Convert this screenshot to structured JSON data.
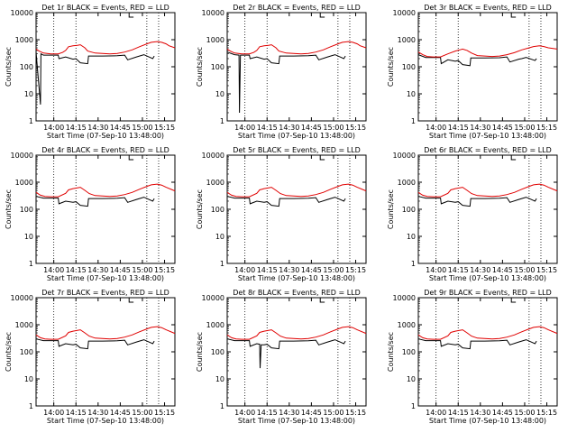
{
  "chart_data": [
    {
      "type": "line",
      "title": "Det 1r BLACK = Events, RED = LLD",
      "xlabel": "Start Time (07-Sep-10 13:48:00)",
      "ylabel": "Counts/sec",
      "ylog": true,
      "ylim": [
        1,
        10000
      ],
      "xlim_min": [
        0,
        94
      ],
      "series": [
        {
          "name": "BLACK = Events",
          "color": "#000000",
          "x": [
            0,
            3,
            3.3,
            5,
            15,
            15.5,
            20,
            25,
            27,
            30,
            35,
            35.5,
            45,
            55,
            60,
            62,
            68,
            70,
            73,
            79,
            80
          ],
          "y": [
            350,
            4,
            300,
            270,
            270,
            200,
            230,
            190,
            200,
            140,
            130,
            250,
            250,
            255,
            270,
            180,
            230,
            250,
            280,
            200,
            250
          ]
        },
        {
          "name": "RED = LLD",
          "color": "#e00000",
          "x": [
            0,
            2,
            5,
            10,
            15,
            18,
            20,
            22,
            25,
            28,
            30,
            33,
            35,
            40,
            50,
            55,
            60,
            65,
            70,
            75,
            78,
            82,
            85,
            88,
            90,
            94
          ],
          "y": [
            450,
            380,
            320,
            300,
            300,
            340,
            400,
            550,
            600,
            620,
            650,
            500,
            380,
            320,
            300,
            310,
            350,
            420,
            550,
            700,
            800,
            850,
            800,
            700,
            600,
            500
          ]
        }
      ]
    },
    {
      "type": "line",
      "title": "Det 2r BLACK = Events, RED = LLD",
      "xlabel": "Start Time (07-Sep-10 13:48:00)",
      "ylabel": "Counts/sec",
      "ylog": true,
      "ylim": [
        1,
        10000
      ],
      "xlim_min": [
        0,
        94
      ],
      "series": [
        {
          "name": "BLACK = Events",
          "color": "#000000",
          "x": [
            0,
            5,
            8,
            8.3,
            9,
            15,
            15.5,
            20,
            25,
            27,
            30,
            35,
            35.5,
            45,
            55,
            60,
            62,
            68,
            70,
            73,
            79,
            80
          ],
          "y": [
            350,
            280,
            270,
            2,
            270,
            270,
            200,
            230,
            190,
            200,
            140,
            130,
            250,
            250,
            255,
            270,
            180,
            230,
            250,
            280,
            200,
            250
          ]
        },
        {
          "name": "RED = LLD",
          "color": "#e00000",
          "x": [
            0,
            2,
            5,
            10,
            15,
            18,
            20,
            22,
            25,
            28,
            30,
            33,
            35,
            40,
            50,
            55,
            60,
            65,
            70,
            75,
            78,
            82,
            85,
            88,
            90,
            94
          ],
          "y": [
            450,
            380,
            320,
            300,
            300,
            340,
            400,
            550,
            600,
            620,
            650,
            500,
            380,
            320,
            300,
            310,
            350,
            420,
            550,
            700,
            800,
            850,
            800,
            700,
            600,
            500
          ]
        }
      ]
    },
    {
      "type": "line",
      "title": "Det 3r BLACK = Events, RED = LLD",
      "xlabel": "Start Time (07-Sep-10 13:48:00)",
      "ylabel": "Counts/sec",
      "ylog": true,
      "ylim": [
        1,
        10000
      ],
      "xlim_min": [
        0,
        94
      ],
      "series": [
        {
          "name": "BLACK = Events",
          "color": "#000000",
          "x": [
            0,
            5,
            15,
            15.5,
            20,
            25,
            27,
            30,
            35,
            35.5,
            45,
            55,
            60,
            62,
            68,
            70,
            73,
            79,
            80
          ],
          "y": [
            280,
            220,
            220,
            130,
            180,
            160,
            170,
            120,
            110,
            210,
            210,
            215,
            230,
            150,
            190,
            200,
            220,
            170,
            200
          ]
        },
        {
          "name": "RED = LLD",
          "color": "#e00000",
          "x": [
            0,
            3,
            6,
            10,
            15,
            20,
            25,
            28,
            30,
            33,
            36,
            40,
            50,
            55,
            60,
            65,
            70,
            75,
            78,
            82,
            85,
            88,
            94
          ],
          "y": [
            350,
            280,
            240,
            230,
            230,
            300,
            380,
            420,
            450,
            400,
            320,
            260,
            240,
            250,
            280,
            330,
            420,
            500,
            560,
            600,
            560,
            500,
            450
          ]
        }
      ]
    },
    {
      "type": "line",
      "title": "Det 4r BLACK = Events, RED = LLD",
      "xlabel": "Start Time (07-Sep-10 13:48:00)",
      "ylabel": "Counts/sec",
      "ylog": true,
      "ylim": [
        1,
        10000
      ],
      "xlim_min": [
        0,
        94
      ],
      "series": [
        {
          "name": "BLACK = Events",
          "color": "#000000",
          "x": [
            0,
            5,
            15,
            15.5,
            20,
            25,
            27,
            30,
            35,
            35.5,
            45,
            55,
            60,
            62,
            68,
            70,
            73,
            79,
            80
          ],
          "y": [
            300,
            260,
            260,
            160,
            200,
            180,
            190,
            140,
            130,
            250,
            250,
            255,
            270,
            180,
            230,
            250,
            280,
            200,
            250
          ]
        },
        {
          "name": "RED = LLD",
          "color": "#e00000",
          "x": [
            0,
            3,
            6,
            10,
            15,
            20,
            22,
            25,
            28,
            30,
            33,
            36,
            40,
            50,
            55,
            60,
            65,
            70,
            75,
            78,
            82,
            85,
            88,
            94
          ],
          "y": [
            420,
            330,
            300,
            290,
            290,
            390,
            520,
            580,
            620,
            650,
            500,
            380,
            320,
            300,
            310,
            350,
            420,
            550,
            700,
            800,
            850,
            780,
            650,
            480
          ]
        }
      ]
    },
    {
      "type": "line",
      "title": "Det 5r BLACK = Events, RED = LLD",
      "xlabel": "Start Time (07-Sep-10 13:48:00)",
      "ylabel": "Counts/sec",
      "ylog": true,
      "ylim": [
        1,
        10000
      ],
      "xlim_min": [
        0,
        94
      ],
      "series": [
        {
          "name": "BLACK = Events",
          "color": "#000000",
          "x": [
            0,
            5,
            15,
            15.5,
            20,
            25,
            27,
            30,
            35,
            35.5,
            45,
            55,
            60,
            62,
            68,
            70,
            73,
            79,
            80
          ],
          "y": [
            300,
            260,
            260,
            160,
            200,
            180,
            190,
            140,
            130,
            250,
            250,
            255,
            270,
            180,
            230,
            250,
            280,
            200,
            250
          ]
        },
        {
          "name": "RED = LLD",
          "color": "#e00000",
          "x": [
            0,
            3,
            6,
            10,
            15,
            20,
            22,
            25,
            28,
            30,
            33,
            36,
            40,
            50,
            55,
            60,
            65,
            70,
            75,
            78,
            82,
            85,
            88,
            94
          ],
          "y": [
            420,
            330,
            300,
            290,
            290,
            390,
            520,
            580,
            620,
            650,
            500,
            380,
            320,
            300,
            310,
            350,
            420,
            550,
            700,
            800,
            850,
            780,
            650,
            480
          ]
        }
      ]
    },
    {
      "type": "line",
      "title": "Det 6r BLACK = Events, RED = LLD",
      "xlabel": "Start Time (07-Sep-10 13:48:00)",
      "ylabel": "Counts/sec",
      "ylog": true,
      "ylim": [
        1,
        10000
      ],
      "xlim_min": [
        0,
        94
      ],
      "series": [
        {
          "name": "BLACK = Events",
          "color": "#000000",
          "x": [
            0,
            5,
            15,
            15.5,
            20,
            25,
            27,
            30,
            35,
            35.5,
            45,
            55,
            60,
            62,
            68,
            70,
            73,
            79,
            80
          ],
          "y": [
            300,
            260,
            260,
            160,
            200,
            180,
            190,
            140,
            130,
            250,
            250,
            255,
            270,
            180,
            230,
            250,
            280,
            200,
            250
          ]
        },
        {
          "name": "RED = LLD",
          "color": "#e00000",
          "x": [
            0,
            3,
            6,
            10,
            15,
            20,
            22,
            25,
            28,
            30,
            33,
            36,
            40,
            50,
            55,
            60,
            65,
            70,
            75,
            78,
            82,
            85,
            88,
            94
          ],
          "y": [
            420,
            330,
            300,
            290,
            290,
            390,
            520,
            580,
            620,
            650,
            500,
            380,
            320,
            300,
            310,
            350,
            420,
            550,
            700,
            800,
            850,
            780,
            650,
            480
          ]
        }
      ]
    },
    {
      "type": "line",
      "title": "Det 7r BLACK = Events, RED = LLD",
      "xlabel": "Start Time (07-Sep-10 13:48:00)",
      "ylabel": "Counts/sec",
      "ylog": true,
      "ylim": [
        1,
        10000
      ],
      "xlim_min": [
        0,
        94
      ],
      "series": [
        {
          "name": "BLACK = Events",
          "color": "#000000",
          "x": [
            0,
            5,
            15,
            15.5,
            20,
            25,
            27,
            30,
            35,
            35.5,
            45,
            55,
            60,
            62,
            68,
            70,
            73,
            79,
            80
          ],
          "y": [
            300,
            260,
            260,
            160,
            200,
            180,
            190,
            140,
            130,
            250,
            250,
            255,
            270,
            180,
            230,
            250,
            280,
            200,
            250
          ]
        },
        {
          "name": "RED = LLD",
          "color": "#e00000",
          "x": [
            0,
            3,
            6,
            10,
            15,
            20,
            22,
            25,
            28,
            30,
            33,
            36,
            40,
            50,
            55,
            60,
            65,
            70,
            75,
            78,
            82,
            85,
            88,
            94
          ],
          "y": [
            420,
            330,
            300,
            290,
            290,
            390,
            520,
            580,
            620,
            650,
            500,
            380,
            320,
            300,
            310,
            350,
            420,
            550,
            700,
            800,
            850,
            780,
            650,
            480
          ]
        }
      ]
    },
    {
      "type": "line",
      "title": "Det 8r BLACK = Events, RED = LLD",
      "xlabel": "Start Time (07-Sep-10 13:48:00)",
      "ylabel": "Counts/sec",
      "ylog": true,
      "ylim": [
        1,
        10000
      ],
      "xlim_min": [
        0,
        94
      ],
      "series": [
        {
          "name": "BLACK = Events",
          "color": "#000000",
          "x": [
            0,
            5,
            15,
            15.5,
            20,
            22,
            22.3,
            23,
            25,
            27,
            30,
            35,
            35.5,
            45,
            55,
            60,
            62,
            68,
            70,
            73,
            79,
            80
          ],
          "y": [
            300,
            260,
            260,
            160,
            200,
            190,
            25,
            180,
            180,
            190,
            140,
            130,
            250,
            250,
            255,
            270,
            180,
            230,
            250,
            280,
            200,
            250
          ]
        },
        {
          "name": "RED = LLD",
          "color": "#e00000",
          "x": [
            0,
            3,
            6,
            10,
            15,
            20,
            22,
            25,
            28,
            30,
            33,
            36,
            40,
            50,
            55,
            60,
            65,
            70,
            75,
            78,
            82,
            85,
            88,
            94
          ],
          "y": [
            420,
            330,
            300,
            290,
            290,
            390,
            520,
            580,
            620,
            650,
            500,
            380,
            320,
            300,
            310,
            350,
            420,
            550,
            700,
            800,
            850,
            780,
            650,
            480
          ]
        }
      ]
    },
    {
      "type": "line",
      "title": "Det 9r BLACK = Events, RED = LLD",
      "xlabel": "Start Time (07-Sep-10 13:48:00)",
      "ylabel": "Counts/sec",
      "ylog": true,
      "ylim": [
        1,
        10000
      ],
      "xlim_min": [
        0,
        94
      ],
      "series": [
        {
          "name": "BLACK = Events",
          "color": "#000000",
          "x": [
            0,
            5,
            15,
            15.5,
            20,
            25,
            27,
            30,
            35,
            35.5,
            45,
            55,
            60,
            62,
            68,
            70,
            73,
            79,
            80
          ],
          "y": [
            300,
            260,
            260,
            160,
            200,
            180,
            190,
            140,
            130,
            250,
            250,
            255,
            270,
            180,
            230,
            250,
            280,
            200,
            250
          ]
        },
        {
          "name": "RED = LLD",
          "color": "#e00000",
          "x": [
            0,
            3,
            6,
            10,
            15,
            20,
            22,
            25,
            28,
            30,
            33,
            36,
            40,
            50,
            55,
            60,
            65,
            70,
            75,
            78,
            82,
            85,
            88,
            94
          ],
          "y": [
            420,
            330,
            300,
            290,
            290,
            390,
            520,
            580,
            620,
            650,
            500,
            380,
            320,
            300,
            310,
            350,
            420,
            550,
            700,
            800,
            850,
            780,
            650,
            480
          ]
        }
      ]
    }
  ],
  "shared": {
    "x_ticks": [
      {
        "label": "14:00",
        "value": 12
      },
      {
        "label": "14:15",
        "value": 27
      },
      {
        "label": "14:30",
        "value": 42
      },
      {
        "label": "14:45",
        "value": 57
      },
      {
        "label": "15:00",
        "value": 72
      },
      {
        "label": "15:15",
        "value": 87
      }
    ],
    "y_ticks": [
      {
        "label": "1",
        "value": 1
      },
      {
        "label": "10",
        "value": 10
      },
      {
        "label": "100",
        "value": 100
      },
      {
        "label": "1000",
        "value": 1000
      },
      {
        "label": "10000",
        "value": 10000
      }
    ],
    "vlines_x": [
      12,
      27,
      75,
      83
    ]
  }
}
